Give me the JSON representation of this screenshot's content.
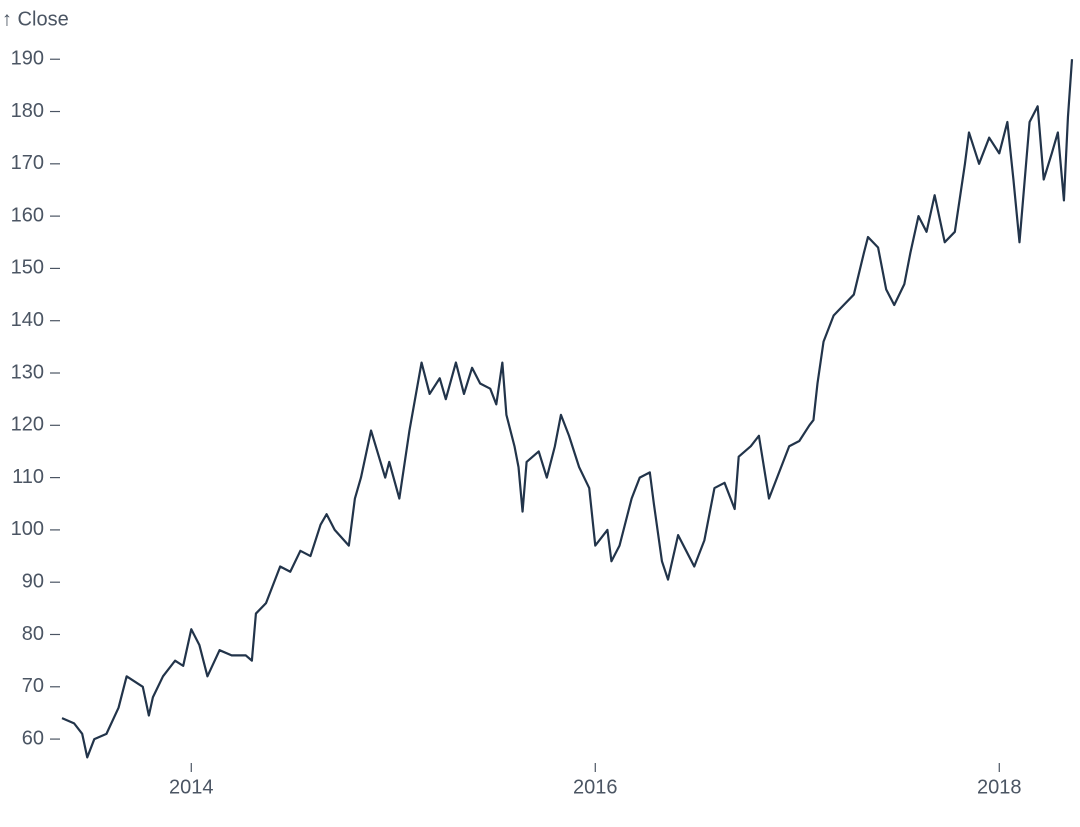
{
  "chart_data": {
    "type": "line",
    "y_label": "↑ Close",
    "xlim": [
      2013.36,
      2018.36
    ],
    "xticks": [
      2014,
      2016,
      2018
    ],
    "ylim": [
      56,
      191
    ],
    "yticks": [
      60,
      70,
      80,
      90,
      100,
      110,
      120,
      130,
      140,
      150,
      160,
      170,
      180,
      190
    ],
    "grid": false,
    "series": [
      {
        "color": "#22344a",
        "x": [
          2013.36,
          2013.42,
          2013.46,
          2013.485,
          2013.52,
          2013.58,
          2013.64,
          2013.68,
          2013.72,
          2013.76,
          2013.79,
          2013.81,
          2013.86,
          2013.92,
          2013.96,
          2014.0,
          2014.04,
          2014.08,
          2014.14,
          2014.2,
          2014.27,
          2014.3,
          2014.32,
          2014.37,
          2014.44,
          2014.49,
          2014.54,
          2014.59,
          2014.64,
          2014.67,
          2014.71,
          2014.78,
          2014.81,
          2014.84,
          2014.89,
          2014.96,
          2014.98,
          2015.03,
          2015.08,
          2015.14,
          2015.18,
          2015.23,
          2015.26,
          2015.31,
          2015.35,
          2015.39,
          2015.43,
          2015.48,
          2015.51,
          2015.54,
          2015.56,
          2015.6,
          2015.62,
          2015.64,
          2015.66,
          2015.72,
          2015.76,
          2015.8,
          2015.83,
          2015.87,
          2015.92,
          2015.97,
          2016.0,
          2016.06,
          2016.08,
          2016.12,
          2016.18,
          2016.22,
          2016.27,
          2016.29,
          2016.33,
          2016.36,
          2016.41,
          2016.45,
          2016.49,
          2016.54,
          2016.59,
          2016.64,
          2016.69,
          2016.71,
          2016.77,
          2016.81,
          2016.86,
          2016.91,
          2016.96,
          2017.01,
          2017.06,
          2017.08,
          2017.1,
          2017.13,
          2017.18,
          2017.23,
          2017.28,
          2017.33,
          2017.35,
          2017.4,
          2017.44,
          2017.48,
          2017.53,
          2017.56,
          2017.6,
          2017.64,
          2017.68,
          2017.73,
          2017.78,
          2017.83,
          2017.85,
          2017.9,
          2017.95,
          2018.0,
          2018.04,
          2018.07,
          2018.1,
          2018.15,
          2018.19,
          2018.22,
          2018.26,
          2018.29,
          2018.32,
          2018.34,
          2018.36
        ],
        "values": [
          64,
          63,
          61,
          56.5,
          60,
          61,
          66,
          72,
          71,
          70,
          64.5,
          68,
          72,
          75,
          74,
          81,
          78,
          72,
          77,
          76,
          76,
          75,
          84,
          86,
          93,
          92,
          96,
          95,
          101,
          103,
          100,
          97,
          106,
          110,
          119,
          110,
          113,
          106,
          119,
          132,
          126,
          129,
          125,
          132,
          126,
          131,
          128,
          127,
          124,
          132,
          122,
          116,
          112,
          103.5,
          113,
          115,
          110,
          116,
          122,
          118,
          112,
          108,
          97,
          100,
          94,
          97,
          106,
          110,
          111,
          105,
          94,
          90.5,
          99,
          96,
          93,
          98,
          108,
          109,
          104,
          114,
          116,
          118,
          106,
          111,
          116,
          117,
          120,
          121,
          128,
          136,
          141,
          143,
          145,
          153,
          156,
          154,
          146,
          143,
          147,
          153,
          160,
          157,
          164,
          155,
          157,
          170,
          176,
          170,
          175,
          172,
          178,
          167,
          155,
          178,
          181,
          167,
          172,
          176,
          163,
          179,
          190
        ]
      }
    ]
  }
}
